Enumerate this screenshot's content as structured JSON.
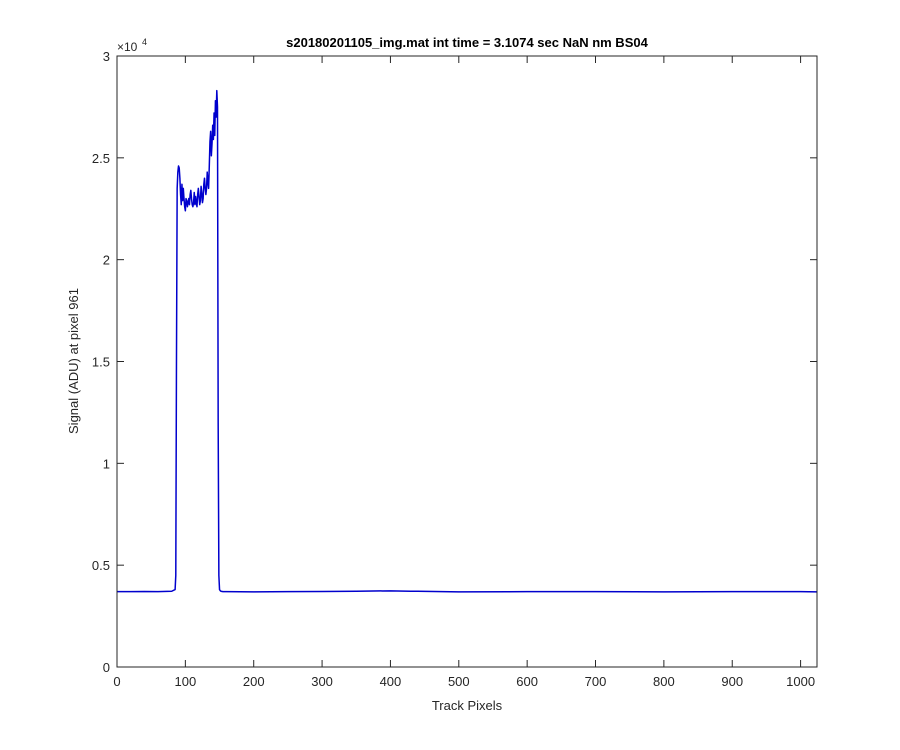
{
  "chart_data": {
    "type": "line",
    "title": "s20180201105_img.mat int time = 3.1074 sec  NaN nm BS04",
    "xlabel": "Track Pixels",
    "ylabel": "Signal (ADU) at pixel 961",
    "xlim": [
      0,
      1024
    ],
    "ylim": [
      0,
      30000
    ],
    "x_ticks": [
      0,
      100,
      200,
      300,
      400,
      500,
      600,
      700,
      800,
      900,
      1000
    ],
    "y_ticks": [
      0,
      5000,
      10000,
      15000,
      20000,
      25000,
      30000
    ],
    "y_tick_labels": [
      "0",
      "0.5",
      "1",
      "1.5",
      "2",
      "2.5",
      "3"
    ],
    "y_exponent_label": "×10",
    "y_exponent_power": "4",
    "grid": false,
    "line_color": "#0000cd",
    "series": [
      {
        "x": [
          0,
          20,
          40,
          60,
          80,
          85,
          86,
          87,
          88,
          89,
          90,
          91,
          92,
          93,
          94,
          95,
          96,
          97,
          98,
          99,
          100,
          101,
          102,
          103,
          104,
          105,
          106,
          107,
          108,
          109,
          110,
          111,
          112,
          113,
          114,
          115,
          116,
          117,
          118,
          119,
          120,
          121,
          122,
          123,
          124,
          125,
          126,
          127,
          128,
          129,
          130,
          131,
          132,
          133,
          134,
          135,
          136,
          137,
          138,
          139,
          140,
          141,
          142,
          143,
          144,
          145,
          146,
          147,
          148,
          149,
          150,
          151,
          152,
          155,
          160,
          200,
          250,
          300,
          350,
          400,
          430,
          440,
          500,
          600,
          700,
          800,
          900,
          1000,
          1024
        ],
        "y": [
          3700,
          3700,
          3710,
          3700,
          3720,
          3800,
          4500,
          15000,
          23500,
          24300,
          24600,
          24500,
          24000,
          23200,
          22700,
          23700,
          22900,
          23500,
          23000,
          22600,
          22400,
          23000,
          22900,
          22600,
          22800,
          23000,
          22700,
          23200,
          23400,
          23000,
          22700,
          22600,
          22800,
          23300,
          22700,
          23100,
          22800,
          22600,
          23200,
          23500,
          23100,
          22700,
          22900,
          23600,
          23300,
          22800,
          23000,
          23700,
          24000,
          23500,
          23200,
          23500,
          24300,
          23800,
          23500,
          24600,
          25800,
          26300,
          25100,
          25700,
          26600,
          25900,
          27200,
          26100,
          27800,
          27000,
          28300,
          27500,
          12000,
          4500,
          3800,
          3750,
          3720,
          3700,
          3700,
          3690,
          3700,
          3710,
          3720,
          3740,
          3720,
          3720,
          3690,
          3700,
          3700,
          3690,
          3700,
          3700,
          3690
        ]
      }
    ]
  }
}
